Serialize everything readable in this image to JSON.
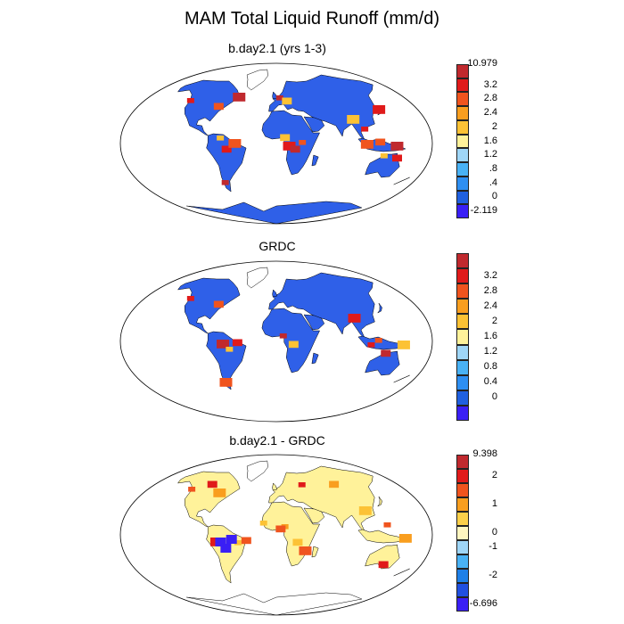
{
  "title": "MAM Total Liquid Runoff (mm/d)",
  "panels": [
    {
      "subtitle": "b.day2.1 (yrs 1-3)",
      "colorbar": {
        "colors": [
          "#3a1ff5",
          "#2060e0",
          "#2e8ff2",
          "#49b2f5",
          "#9fd6f7",
          "#fff29a",
          "#fcc235",
          "#f99e1f",
          "#f0541e",
          "#e01a1a",
          "#c0292e"
        ],
        "labels": [
          "-2.119",
          "0",
          ".4",
          ".8",
          "1.2",
          "1.6",
          "2",
          "2.4",
          "2.8",
          "3.2",
          "10.979"
        ]
      }
    },
    {
      "subtitle": "GRDC",
      "colorbar": {
        "colors": [
          "#3a1ff5",
          "#2060e0",
          "#2e8ff2",
          "#49b2f5",
          "#9fd6f7",
          "#fff29a",
          "#fcc235",
          "#f99e1f",
          "#f0541e",
          "#e01a1a",
          "#c0292e"
        ],
        "labels": [
          "",
          "0",
          "0.4",
          "0.8",
          "1.2",
          "1.6",
          "2",
          "2.4",
          "2.8",
          "3.2",
          ""
        ]
      }
    },
    {
      "subtitle": "b.day2.1 - GRDC",
      "colorbar": {
        "colors": [
          "#3a1ff5",
          "#2050e0",
          "#1e80e8",
          "#49b2f5",
          "#9fd6f7",
          "#fff6c0",
          "#fcd04a",
          "#f99e1f",
          "#f0541e",
          "#e01a1a",
          "#c0292e"
        ],
        "labels": [
          "-6.696",
          "",
          "-2",
          "",
          "-1",
          "0",
          "",
          "1",
          "",
          "2",
          "9.398"
        ]
      }
    }
  ],
  "chart_data": [
    {
      "type": "heatmap",
      "title": "b.day2.1 (yrs 1-3)",
      "units": "mm/d",
      "color_levels": [
        -2.119,
        0,
        0.4,
        0.8,
        1.2,
        1.6,
        2,
        2.4,
        2.8,
        3.2,
        10.979
      ]
    },
    {
      "type": "heatmap",
      "title": "GRDC",
      "units": "mm/d",
      "color_levels": [
        0,
        0.4,
        0.8,
        1.2,
        1.6,
        2,
        2.4,
        2.8,
        3.2
      ]
    },
    {
      "type": "heatmap",
      "title": "b.day2.1 - GRDC",
      "units": "mm/d",
      "color_levels": [
        -6.696,
        -2,
        -1,
        0,
        1,
        2,
        9.398
      ]
    }
  ]
}
